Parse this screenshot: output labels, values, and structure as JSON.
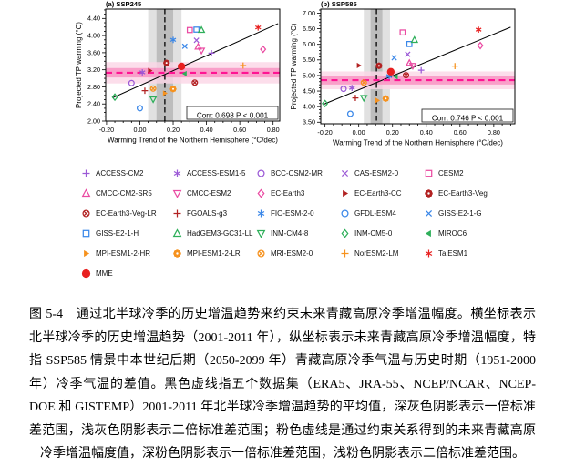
{
  "figure": {
    "colors": {
      "purple": "#9b59d6",
      "magenta": "#ea4aa2",
      "crimson": "#b22222",
      "blue": "#3a87e8",
      "green": "#2eaf5a",
      "orange": "#f6921e",
      "red": "#e82020",
      "pink_line": "#ff1493",
      "band_gray_dark": "#bdbdbd",
      "band_gray_light": "#e1e1e1",
      "band_pink_dark": "#f894c3",
      "band_pink_light": "#fbd6e6",
      "fit_line": "#000000",
      "obs_line": "#1a1a1a"
    }
  },
  "legend": {
    "models": [
      {
        "name": "ACCESS-CM2",
        "symbol": "plus",
        "color": "purple"
      },
      {
        "name": "ACCESS-ESM1-5",
        "symbol": "asterisk",
        "color": "purple"
      },
      {
        "name": "BCC-CSM2-MR",
        "symbol": "circle",
        "color": "purple"
      },
      {
        "name": "CAS-ESM2-0",
        "symbol": "x",
        "color": "purple"
      },
      {
        "name": "CESM2",
        "symbol": "square",
        "color": "magenta"
      },
      {
        "name": "CMCC-CM2-SR5",
        "symbol": "triangle-up",
        "color": "magenta"
      },
      {
        "name": "CMCC-ESM2",
        "symbol": "triangle-down",
        "color": "magenta"
      },
      {
        "name": "EC-Earth3",
        "symbol": "diamond",
        "color": "magenta"
      },
      {
        "name": "EC-Earth3-CC",
        "symbol": "tri-right",
        "color": "crimson"
      },
      {
        "name": "EC-Earth3-Veg",
        "symbol": "flower",
        "color": "crimson"
      },
      {
        "name": "EC-Earth3-Veg-LR",
        "symbol": "circle-x",
        "color": "crimson"
      },
      {
        "name": "FGOALS-g3",
        "symbol": "plus",
        "color": "crimson"
      },
      {
        "name": "FIO-ESM-2-0",
        "symbol": "asterisk",
        "color": "blue"
      },
      {
        "name": "GFDL-ESM4",
        "symbol": "circle",
        "color": "blue"
      },
      {
        "name": "GISS-E2-1-G",
        "symbol": "x",
        "color": "blue"
      },
      {
        "name": "GISS-E2-1-H",
        "symbol": "square",
        "color": "blue"
      },
      {
        "name": "HadGEM3-GC31-LL",
        "symbol": "triangle-up",
        "color": "green"
      },
      {
        "name": "INM-CM4-8",
        "symbol": "triangle-down",
        "color": "green"
      },
      {
        "name": "INM-CM5-0",
        "symbol": "diamond",
        "color": "green"
      },
      {
        "name": "MIROC6",
        "symbol": "tri-left",
        "color": "green"
      },
      {
        "name": "MPI-ESM1-2-HR",
        "symbol": "tri-right",
        "color": "orange"
      },
      {
        "name": "MPI-ESM1-2-LR",
        "symbol": "flower",
        "color": "orange"
      },
      {
        "name": "MRI-ESM2-0",
        "symbol": "circle-x",
        "color": "orange"
      },
      {
        "name": "NorESM2-LM",
        "symbol": "plus",
        "color": "orange"
      },
      {
        "name": "TaiESM1",
        "symbol": "asterisk",
        "color": "red"
      },
      {
        "name": "MME",
        "symbol": "dot",
        "color": "red"
      }
    ]
  },
  "chart_data": [
    {
      "id": "a",
      "type": "scatter",
      "title": "(a) SSP245",
      "xlabel": "Warming Trend of the Northern Hemisphere (°C/dec)",
      "ylabel": "Projected TP warming (°C)",
      "xlim": [
        -0.205,
        0.84
      ],
      "ylim": [
        2.0,
        4.62
      ],
      "xticks": [
        -0.2,
        0.0,
        0.2,
        0.4,
        0.6,
        0.8
      ],
      "xtick_labels": [
        "-0.20",
        "0.00",
        "0.20",
        "0.40",
        "0.60",
        "0.80"
      ],
      "yticks": [
        2.0,
        2.4,
        2.8,
        3.2,
        3.6,
        4.0,
        4.4
      ],
      "ytick_labels": [
        "2.00",
        "2.40",
        "2.80",
        "3.20",
        "3.60",
        "4.00",
        "4.40"
      ],
      "x_minor_step": 0.05,
      "y_minor_step": 0.1,
      "corr_label": "Corr: 0.698  P < 0.001",
      "obs_mean": 0.15,
      "obs_sd1": [
        0.1,
        0.2
      ],
      "obs_sd2": [
        0.05,
        0.25
      ],
      "constrained_mean": 3.13,
      "constrained_sd1": [
        3.02,
        3.24
      ],
      "constrained_sd2": [
        2.88,
        3.38
      ],
      "fit_line": {
        "x1": -0.16,
        "y1": 2.55,
        "x2": 0.83,
        "y2": 4.28
      },
      "points": [
        {
          "model": "ACCESS-CM2",
          "x": 0.43,
          "y": 3.59
        },
        {
          "model": "ACCESS-ESM1-5",
          "x": 0.015,
          "y": 3.14
        },
        {
          "model": "BCC-CSM2-MR",
          "x": -0.05,
          "y": 2.89
        },
        {
          "model": "CAS-ESM2-0",
          "x": 0.34,
          "y": 3.89
        },
        {
          "model": "CESM2",
          "x": 0.3,
          "y": 4.13
        },
        {
          "model": "CMCC-CM2-SR5",
          "x": 0.35,
          "y": 3.74
        },
        {
          "model": "CMCC-ESM2",
          "x": 0.37,
          "y": 3.65
        },
        {
          "model": "EC-Earth3",
          "x": 0.74,
          "y": 3.68
        },
        {
          "model": "EC-Earth3-CC",
          "x": 0.06,
          "y": 3.18
        },
        {
          "model": "EC-Earth3-Veg",
          "x": 0.16,
          "y": 3.36
        },
        {
          "model": "EC-Earth3-Veg-LR",
          "x": 0.33,
          "y": 2.9
        },
        {
          "model": "FGOALS-g3",
          "x": 0.03,
          "y": 2.71
        },
        {
          "model": "FIO-ESM-2-0",
          "x": 0.2,
          "y": 3.9
        },
        {
          "model": "GFDL-ESM4",
          "x": 0.0,
          "y": 2.3
        },
        {
          "model": "GISS-E2-1-G",
          "x": 0.27,
          "y": 3.75
        },
        {
          "model": "GISS-E2-1-H",
          "x": 0.34,
          "y": 4.14
        },
        {
          "model": "HadGEM3-GC31-LL",
          "x": 0.37,
          "y": 4.13
        },
        {
          "model": "INM-CM4-8",
          "x": 0.08,
          "y": 2.51
        },
        {
          "model": "INM-CM5-0",
          "x": -0.15,
          "y": 2.56
        },
        {
          "model": "MIROC6",
          "x": 0.27,
          "y": 3.11
        },
        {
          "model": "MPI-ESM1-2-HR",
          "x": 0.15,
          "y": 2.65
        },
        {
          "model": "MPI-ESM1-2-LR",
          "x": 0.2,
          "y": 2.75
        },
        {
          "model": "MRI-ESM2-0",
          "x": 0.08,
          "y": 2.76
        },
        {
          "model": "NorESM2-LM",
          "x": 0.62,
          "y": 3.3
        },
        {
          "model": "TaiESM1",
          "x": 0.71,
          "y": 4.19
        },
        {
          "model": "MME",
          "x": 0.25,
          "y": 3.28
        }
      ]
    },
    {
      "id": "b",
      "type": "scatter",
      "title": "(b) SSP585",
      "xlabel": "Warming Trend of the Northern Hemisphere (°C/dec)",
      "ylabel": "Projected TP warming (°C)",
      "xlim": [
        -0.225,
        0.925
      ],
      "ylim": [
        3.45,
        7.13
      ],
      "xticks": [
        -0.2,
        0.0,
        0.2,
        0.4,
        0.6,
        0.8
      ],
      "xtick_labels": [
        "-0.20",
        "0.00",
        "0.20",
        "0.40",
        "0.60",
        "0.80"
      ],
      "yticks": [
        3.5,
        4.0,
        4.5,
        5.0,
        5.5,
        6.0,
        6.5,
        7.0
      ],
      "ytick_labels": [
        "3.50",
        "4.00",
        "4.50",
        "5.00",
        "5.50",
        "6.00",
        "6.50",
        "7.00"
      ],
      "x_minor_step": 0.05,
      "y_minor_step": 0.1,
      "corr_label": "Corr: 0.746  P < 0.001",
      "obs_mean": 0.105,
      "obs_sd1": [
        0.07,
        0.14
      ],
      "obs_sd2": [
        0.03,
        0.185
      ],
      "constrained_mean": 4.85,
      "constrained_sd1": [
        4.71,
        4.99
      ],
      "constrained_sd2": [
        4.56,
        5.13
      ],
      "fit_line": {
        "x1": -0.21,
        "y1": 4.07,
        "x2": 0.9,
        "y2": 6.55
      },
      "points": [
        {
          "model": "ACCESS-CM2",
          "x": 0.37,
          "y": 5.17
        },
        {
          "model": "ACCESS-ESM1-5",
          "x": -0.04,
          "y": 4.6
        },
        {
          "model": "BCC-CSM2-MR",
          "x": -0.09,
          "y": 4.57
        },
        {
          "model": "CAS-ESM2-0",
          "x": 0.29,
          "y": 5.68
        },
        {
          "model": "CESM2",
          "x": 0.26,
          "y": 6.38
        },
        {
          "model": "CMCC-CM2-SR5",
          "x": 0.3,
          "y": 5.4
        },
        {
          "model": "CMCC-ESM2",
          "x": 0.32,
          "y": 5.31
        },
        {
          "model": "EC-Earth3",
          "x": 0.72,
          "y": 5.96
        },
        {
          "model": "EC-Earth3-CC",
          "x": 0.0,
          "y": 5.32
        },
        {
          "model": "EC-Earth3-Veg",
          "x": 0.12,
          "y": 5.31
        },
        {
          "model": "EC-Earth3-Veg-LR",
          "x": 0.28,
          "y": 5.01
        },
        {
          "model": "FGOALS-g3",
          "x": -0.02,
          "y": 4.28
        },
        {
          "model": "FIO-ESM-2-0",
          "x": 0.18,
          "y": 4.98
        },
        {
          "model": "GFDL-ESM4",
          "x": -0.05,
          "y": 3.77
        },
        {
          "model": "GISS-E2-1-G",
          "x": 0.21,
          "y": 5.57
        },
        {
          "model": "GISS-E2-1-H",
          "x": 0.3,
          "y": 6.01
        },
        {
          "model": "HadGEM3-GC31-LL",
          "x": 0.33,
          "y": 6.14
        },
        {
          "model": "INM-CM4-8",
          "x": 0.03,
          "y": 4.28
        },
        {
          "model": "INM-CM5-0",
          "x": -0.2,
          "y": 4.1
        },
        {
          "model": "MIROC6",
          "x": 0.22,
          "y": 4.96
        },
        {
          "model": "MPI-ESM1-2-HR",
          "x": 0.11,
          "y": 4.2
        },
        {
          "model": "MPI-ESM1-2-LR",
          "x": 0.16,
          "y": 4.26
        },
        {
          "model": "MRI-ESM2-0",
          "x": 0.03,
          "y": 4.77
        },
        {
          "model": "NorESM2-LM",
          "x": 0.57,
          "y": 5.3
        },
        {
          "model": "TaiESM1",
          "x": 0.71,
          "y": 6.47
        },
        {
          "model": "MME",
          "x": 0.19,
          "y": 5.12
        }
      ]
    }
  ],
  "caption": {
    "lines": [
      "图 5-4　通过北半球冷季的历史增温趋势来约束未来青藏高原冷季增温幅度。横坐标表示",
      "北半球冷季的历史增温趋势（2001-2011 年），纵坐标表示未来青藏高原冷季增温幅度，特",
      "指 SSP585 情景中本世纪后期（2050-2099 年）青藏高原冷季气温与历史时期（1951-2000",
      "年）冷季气温的差值。黑色虚线指五个数据集（ERA5、JRA-55、NCEP/NCAR、NCEP-",
      "DOE 和 GISTEMP）2001-2011 年北半球冷季增温趋势的平均值，深灰色阴影表示一倍标准",
      "差范围，浅灰色阴影表示二倍标准差范围；粉色虚线是通过约束关系得到的未来青藏高原",
      "冷季增温幅度值，深粉色阴影表示一倍标准差范围，浅粉色阴影表示二倍标准差范围。"
    ]
  }
}
